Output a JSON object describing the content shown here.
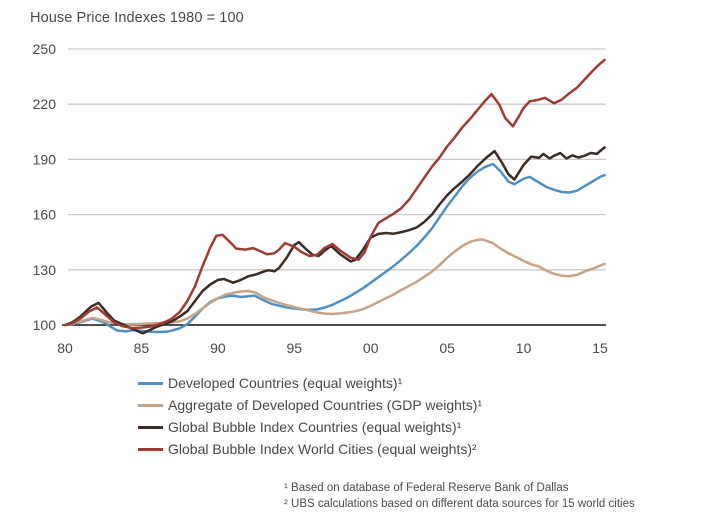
{
  "page": {
    "title": "House Price Indexes 1980 = 100"
  },
  "footnotes": {
    "line1": "¹ Based on database of Federal Reserve Bank of Dallas",
    "line2": "² UBS calculations based on different data sources for 15 world cities"
  },
  "colors": {
    "background": "#ffffff",
    "text": "#484848",
    "grid": "#c9c9c9",
    "axis": "#141414",
    "developed": "#4e90c3",
    "aggregate": "#c6a385",
    "bubble_countries": "#3a2c24",
    "bubble_world_cities": "#9e3b32"
  },
  "chart_data": {
    "type": "line",
    "title": "House Price Indexes 1980 = 100",
    "xlabel": "",
    "ylabel": "",
    "grid": "horizontal",
    "legend_position": "bottom-left",
    "xlim": [
      1980,
      2015.3
    ],
    "ylim": [
      100,
      250
    ],
    "baseline_value": 100,
    "x_ticks": [
      {
        "year": 1980,
        "label": "80"
      },
      {
        "year": 1985,
        "label": "85"
      },
      {
        "year": 1990,
        "label": "90"
      },
      {
        "year": 1995,
        "label": "95"
      },
      {
        "year": 2000,
        "label": "00"
      },
      {
        "year": 2005,
        "label": "05"
      },
      {
        "year": 2010,
        "label": "10"
      },
      {
        "year": 2015,
        "label": "15"
      }
    ],
    "y_ticks": [
      100,
      130,
      160,
      190,
      220,
      250
    ],
    "series": [
      {
        "name": "Developed Countries (equal weights)¹",
        "color": "#4e90c3",
        "points": [
          [
            1980,
            100
          ],
          [
            1980.5,
            100.5
          ],
          [
            1981,
            101.5
          ],
          [
            1981.8,
            103.5
          ],
          [
            1982.5,
            101.5
          ],
          [
            1983,
            99
          ],
          [
            1983.4,
            97
          ],
          [
            1984,
            96.5
          ],
          [
            1984.5,
            97.3
          ],
          [
            1985,
            96.8
          ],
          [
            1985.5,
            96.4
          ],
          [
            1986,
            96.2
          ],
          [
            1986.6,
            96.3
          ],
          [
            1987,
            97
          ],
          [
            1987.5,
            98.2
          ],
          [
            1988,
            100.5
          ],
          [
            1988.5,
            104.5
          ],
          [
            1989,
            109
          ],
          [
            1989.5,
            112.5
          ],
          [
            1990,
            114.5
          ],
          [
            1990.5,
            115.5
          ],
          [
            1991,
            116
          ],
          [
            1991.5,
            115.2
          ],
          [
            1992,
            115.6
          ],
          [
            1992.4,
            116
          ],
          [
            1993,
            113.5
          ],
          [
            1993.5,
            111.5
          ],
          [
            1994,
            110.5
          ],
          [
            1994.5,
            109.5
          ],
          [
            1995,
            109
          ],
          [
            1995.5,
            108.5
          ],
          [
            1996,
            108.2
          ],
          [
            1996.5,
            108.5
          ],
          [
            1997,
            109.5
          ],
          [
            1997.5,
            111
          ],
          [
            1998,
            113
          ],
          [
            1998.5,
            115
          ],
          [
            1999,
            117.5
          ],
          [
            1999.5,
            120
          ],
          [
            2000,
            123
          ],
          [
            2000.5,
            126
          ],
          [
            2001,
            129
          ],
          [
            2001.5,
            132
          ],
          [
            2002,
            135.5
          ],
          [
            2002.5,
            139
          ],
          [
            2003,
            143
          ],
          [
            2003.5,
            147.5
          ],
          [
            2004,
            152.5
          ],
          [
            2004.5,
            158.5
          ],
          [
            2005,
            164.5
          ],
          [
            2005.5,
            170
          ],
          [
            2006,
            175.5
          ],
          [
            2006.5,
            180
          ],
          [
            2007,
            183.5
          ],
          [
            2007.5,
            186
          ],
          [
            2008,
            187.5
          ],
          [
            2008.5,
            183.5
          ],
          [
            2009,
            178
          ],
          [
            2009.4,
            176.5
          ],
          [
            2010,
            179.5
          ],
          [
            2010.4,
            180.5
          ],
          [
            2011,
            177.5
          ],
          [
            2011.5,
            175
          ],
          [
            2012,
            173.5
          ],
          [
            2012.5,
            172.3
          ],
          [
            2013,
            172
          ],
          [
            2013.5,
            173
          ],
          [
            2014,
            175.5
          ],
          [
            2014.5,
            178
          ],
          [
            2015,
            180.5
          ],
          [
            2015.3,
            181.5
          ]
        ]
      },
      {
        "name": "Aggregate of Developed Countries (GDP weights)¹",
        "color": "#c6a385",
        "points": [
          [
            1980,
            100
          ],
          [
            1980.5,
            100.8
          ],
          [
            1981,
            102
          ],
          [
            1981.8,
            103.8
          ],
          [
            1982.5,
            102.5
          ],
          [
            1983,
            101.2
          ],
          [
            1984,
            100.3
          ],
          [
            1985,
            100.6
          ],
          [
            1986,
            101
          ],
          [
            1987,
            101.5
          ],
          [
            1987.5,
            102
          ],
          [
            1988,
            103.5
          ],
          [
            1988.5,
            106
          ],
          [
            1989,
            109
          ],
          [
            1989.5,
            112
          ],
          [
            1990,
            114.5
          ],
          [
            1990.5,
            116.5
          ],
          [
            1991,
            117.5
          ],
          [
            1991.5,
            118.2
          ],
          [
            1992,
            118.5
          ],
          [
            1992.5,
            117.5
          ],
          [
            1993,
            115
          ],
          [
            1993.5,
            113.5
          ],
          [
            1994,
            112
          ],
          [
            1994.5,
            110.8
          ],
          [
            1995,
            109.8
          ],
          [
            1995.5,
            108.8
          ],
          [
            1996,
            107.8
          ],
          [
            1996.5,
            106.8
          ],
          [
            1997,
            106.2
          ],
          [
            1997.5,
            106
          ],
          [
            1998,
            106.3
          ],
          [
            1998.5,
            106.8
          ],
          [
            1999,
            107.5
          ],
          [
            1999.5,
            108.6
          ],
          [
            2000,
            110.5
          ],
          [
            2000.5,
            112.5
          ],
          [
            2001,
            114.5
          ],
          [
            2001.5,
            116.6
          ],
          [
            2002,
            119
          ],
          [
            2002.5,
            121.2
          ],
          [
            2003,
            123.5
          ],
          [
            2003.5,
            126.2
          ],
          [
            2004,
            129
          ],
          [
            2004.5,
            132.5
          ],
          [
            2005,
            136.5
          ],
          [
            2005.5,
            140
          ],
          [
            2006,
            143
          ],
          [
            2006.5,
            145.2
          ],
          [
            2007,
            146.3
          ],
          [
            2007.3,
            146.5
          ],
          [
            2008,
            144.5
          ],
          [
            2008.5,
            141.5
          ],
          [
            2009,
            139
          ],
          [
            2009.5,
            137
          ],
          [
            2010,
            134.8
          ],
          [
            2010.5,
            133
          ],
          [
            2011,
            131.8
          ],
          [
            2011.5,
            129.5
          ],
          [
            2012,
            127.8
          ],
          [
            2012.5,
            126.8
          ],
          [
            2013,
            126.5
          ],
          [
            2013.5,
            127.3
          ],
          [
            2014,
            129
          ],
          [
            2014.5,
            130.6
          ],
          [
            2015,
            132.2
          ],
          [
            2015.3,
            133.2
          ]
        ]
      },
      {
        "name": "Global Bubble Index Countries (equal weights)¹",
        "color": "#3a2c24",
        "points": [
          [
            1980,
            100
          ],
          [
            1980.5,
            101.5
          ],
          [
            1981,
            104.5
          ],
          [
            1981.7,
            110
          ],
          [
            1982.2,
            112
          ],
          [
            1982.7,
            107
          ],
          [
            1983.2,
            102.5
          ],
          [
            1983.6,
            101
          ],
          [
            1984,
            99.5
          ],
          [
            1984.5,
            97.5
          ],
          [
            1985.1,
            95.5
          ],
          [
            1985.6,
            97.5
          ],
          [
            1986,
            99
          ],
          [
            1986.5,
            100.5
          ],
          [
            1987,
            102
          ],
          [
            1987.5,
            104.5
          ],
          [
            1988,
            107.5
          ],
          [
            1988.5,
            113
          ],
          [
            1989,
            118.5
          ],
          [
            1989.5,
            122
          ],
          [
            1990,
            124.5
          ],
          [
            1990.4,
            125
          ],
          [
            1991,
            123
          ],
          [
            1991.5,
            124.5
          ],
          [
            1992,
            126.5
          ],
          [
            1992.5,
            127.5
          ],
          [
            1993,
            129
          ],
          [
            1993.3,
            129.8
          ],
          [
            1993.7,
            129.2
          ],
          [
            1994,
            131
          ],
          [
            1994.5,
            136.5
          ],
          [
            1995,
            143.5
          ],
          [
            1995.3,
            145
          ],
          [
            1995.8,
            141
          ],
          [
            1996.2,
            138.2
          ],
          [
            1996.6,
            137.5
          ],
          [
            1997,
            140.5
          ],
          [
            1997.4,
            143
          ],
          [
            1998,
            138.5
          ],
          [
            1998.7,
            134.5
          ],
          [
            1999,
            135.5
          ],
          [
            1999.5,
            141
          ],
          [
            2000,
            147.5
          ],
          [
            2000.5,
            149.5
          ],
          [
            2001,
            150
          ],
          [
            2001.5,
            149.6
          ],
          [
            2002,
            150.5
          ],
          [
            2002.5,
            151.5
          ],
          [
            2003,
            153
          ],
          [
            2003.5,
            156
          ],
          [
            2004,
            160
          ],
          [
            2004.5,
            165.5
          ],
          [
            2005,
            170.5
          ],
          [
            2005.5,
            174.5
          ],
          [
            2006,
            178
          ],
          [
            2006.5,
            182
          ],
          [
            2007,
            186.5
          ],
          [
            2007.5,
            190.5
          ],
          [
            2008.1,
            194.5
          ],
          [
            2008.6,
            188
          ],
          [
            2009,
            182
          ],
          [
            2009.4,
            179
          ],
          [
            2010,
            187
          ],
          [
            2010.5,
            191.5
          ],
          [
            2011,
            190.8
          ],
          [
            2011.3,
            193
          ],
          [
            2011.7,
            190.5
          ],
          [
            2012,
            192
          ],
          [
            2012.4,
            193.5
          ],
          [
            2012.8,
            190.5
          ],
          [
            2013.2,
            192.2
          ],
          [
            2013.6,
            191
          ],
          [
            2014,
            192
          ],
          [
            2014.4,
            193.5
          ],
          [
            2014.8,
            193
          ],
          [
            2015,
            194.5
          ],
          [
            2015.3,
            196.5
          ]
        ]
      },
      {
        "name": "Global Bubble Index World Cities (equal weights)²",
        "color": "#9e3b32",
        "points": [
          [
            1980,
            100
          ],
          [
            1980.5,
            101
          ],
          [
            1981,
            103.5
          ],
          [
            1981.6,
            107.5
          ],
          [
            1982.1,
            109.5
          ],
          [
            1982.6,
            106
          ],
          [
            1983.2,
            101.5
          ],
          [
            1983.7,
            99.5
          ],
          [
            1984.4,
            98.3
          ],
          [
            1985,
            98.6
          ],
          [
            1985.5,
            99
          ],
          [
            1986,
            100
          ],
          [
            1986.5,
            101.5
          ],
          [
            1987,
            103.5
          ],
          [
            1987.5,
            107
          ],
          [
            1988,
            113
          ],
          [
            1988.5,
            121
          ],
          [
            1989,
            132
          ],
          [
            1989.5,
            142
          ],
          [
            1989.9,
            148.5
          ],
          [
            1990.3,
            149
          ],
          [
            1990.8,
            145
          ],
          [
            1991.2,
            141.5
          ],
          [
            1991.8,
            141
          ],
          [
            1992.3,
            141.8
          ],
          [
            1992.8,
            140
          ],
          [
            1993.2,
            138.5
          ],
          [
            1993.7,
            139
          ],
          [
            1994,
            141
          ],
          [
            1994.4,
            144.5
          ],
          [
            1995,
            142.5
          ],
          [
            1995.5,
            139.5
          ],
          [
            1996,
            137.5
          ],
          [
            1996.5,
            138.2
          ],
          [
            1997,
            142
          ],
          [
            1997.5,
            144
          ],
          [
            1998,
            140.5
          ],
          [
            1998.7,
            136.5
          ],
          [
            1999.2,
            135.5
          ],
          [
            1999.6,
            139.5
          ],
          [
            2000,
            148
          ],
          [
            2000.5,
            155.5
          ],
          [
            2001,
            158
          ],
          [
            2001.5,
            160.5
          ],
          [
            2002,
            163.5
          ],
          [
            2002.5,
            168
          ],
          [
            2003,
            174
          ],
          [
            2003.5,
            180
          ],
          [
            2004,
            186
          ],
          [
            2004.5,
            191
          ],
          [
            2005,
            197
          ],
          [
            2005.5,
            202
          ],
          [
            2006,
            207.5
          ],
          [
            2006.5,
            212
          ],
          [
            2007,
            217
          ],
          [
            2007.5,
            222
          ],
          [
            2007.9,
            225.5
          ],
          [
            2008.4,
            220
          ],
          [
            2008.8,
            212.5
          ],
          [
            2009.3,
            208
          ],
          [
            2009.7,
            213.5
          ],
          [
            2010,
            218
          ],
          [
            2010.4,
            221.5
          ],
          [
            2011,
            222.5
          ],
          [
            2011.4,
            223.5
          ],
          [
            2012,
            220.5
          ],
          [
            2012.5,
            222.5
          ],
          [
            2013,
            226
          ],
          [
            2013.5,
            229
          ],
          [
            2014,
            233.5
          ],
          [
            2014.5,
            238
          ],
          [
            2015,
            242
          ],
          [
            2015.3,
            244
          ]
        ]
      }
    ]
  }
}
